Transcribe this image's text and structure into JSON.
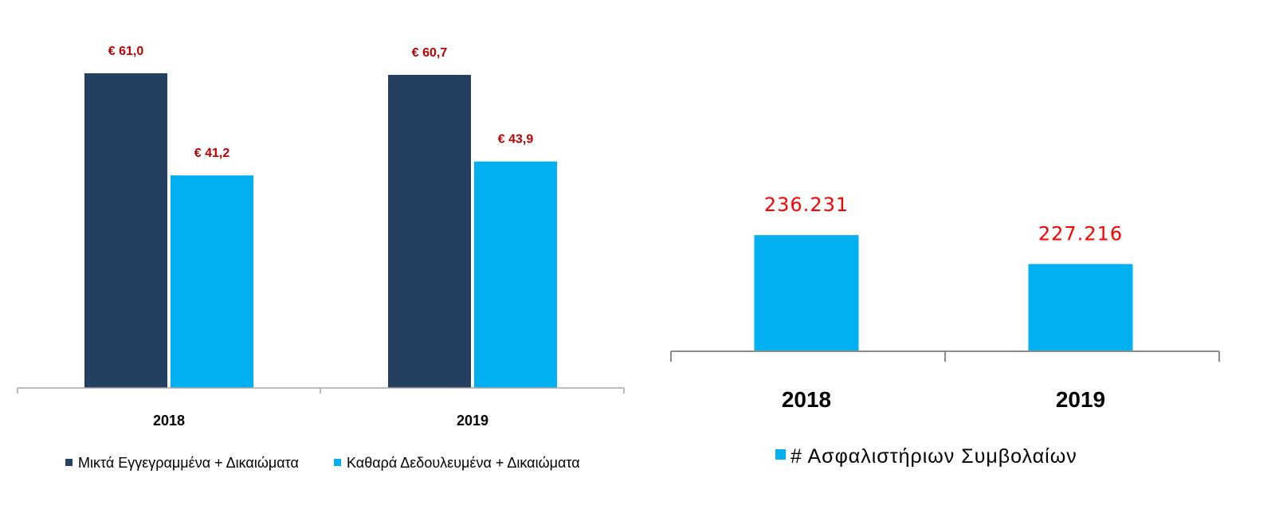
{
  "chart_data": [
    {
      "type": "bar",
      "categories": [
        "2018",
        "2019"
      ],
      "series": [
        {
          "name": "Μικτά Εγγεγραμμένα + Δικαιώματα",
          "color": "#243f5f",
          "values": [
            61.0,
            60.7
          ],
          "labels": [
            "€ 61,0",
            "€ 60,7"
          ]
        },
        {
          "name": "Καθαρά Δεδουλευμένα + Δικαιώματα",
          "color": "#00b0f0",
          "values": [
            41.2,
            43.9
          ],
          "labels": [
            "€ 41,2",
            "€ 43,9"
          ]
        }
      ],
      "label_color": "#c00000",
      "ylim": [
        0,
        61
      ],
      "grid": false,
      "legend_position": "bottom"
    },
    {
      "type": "bar",
      "categories": [
        "2018",
        "2019"
      ],
      "series": [
        {
          "name": "# Ασφαλιστήριων Συμβολαίων",
          "color": "#00b0f0",
          "values": [
            236231,
            227216
          ],
          "labels": [
            "236.231",
            "227.216"
          ]
        }
      ],
      "label_color": "#ff0000",
      "ylim": [
        200000,
        240000
      ],
      "grid": false,
      "legend_position": "bottom"
    }
  ]
}
